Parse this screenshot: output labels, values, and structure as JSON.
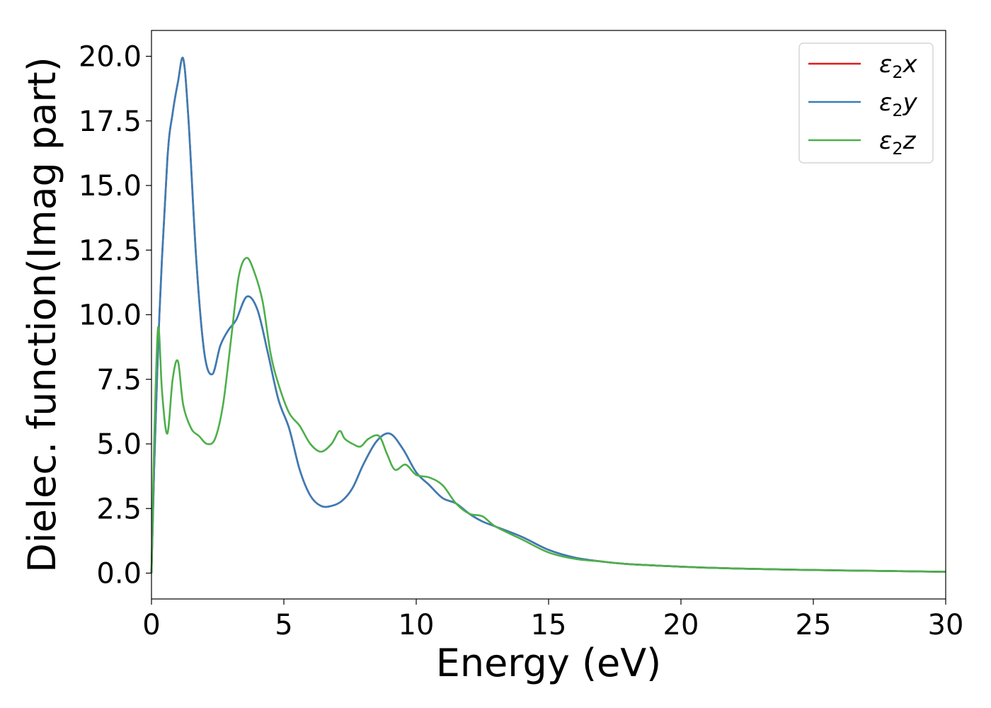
{
  "chart_data": {
    "type": "line",
    "title": "",
    "xlabel": "Energy (eV)",
    "ylabel": "Dielec. function(Imag part)",
    "xlim": [
      0,
      30
    ],
    "ylim": [
      -1,
      21
    ],
    "x_ticks": [
      "0",
      "5",
      "10",
      "15",
      "20",
      "25",
      "30"
    ],
    "y_ticks": [
      "0.0",
      "2.5",
      "5.0",
      "7.5",
      "10.0",
      "12.5",
      "15.0",
      "17.5",
      "20.0"
    ],
    "grid": false,
    "legend_position": "top-right",
    "legend": [
      {
        "sub": "2",
        "var": "x"
      },
      {
        "sub": "2",
        "var": "y"
      },
      {
        "sub": "2",
        "var": "z"
      }
    ],
    "series": [
      {
        "name": "ε2x",
        "color": "#e41a1c",
        "x": [
          0,
          0.1,
          0.3,
          0.6,
          0.8,
          1.0,
          1.2,
          1.4,
          1.7,
          2.0,
          2.3,
          2.6,
          2.9,
          3.2,
          3.6,
          4.0,
          4.4,
          4.8,
          5.2,
          5.6,
          6.0,
          6.4,
          6.8,
          7.2,
          7.6,
          8.0,
          8.5,
          9.0,
          9.5,
          10.0,
          10.5,
          11.0,
          11.5,
          12.0,
          12.5,
          13.0,
          14.0,
          15.0,
          16.0,
          17.0,
          18.0,
          20.0,
          22.0,
          25.0,
          28.0,
          30.0
        ],
        "y": [
          0,
          4.0,
          10.0,
          16.0,
          17.8,
          19.0,
          19.9,
          17.5,
          12.0,
          8.5,
          7.7,
          8.8,
          9.4,
          9.8,
          10.7,
          10.2,
          8.5,
          6.7,
          5.6,
          4.0,
          3.0,
          2.6,
          2.6,
          2.8,
          3.3,
          4.2,
          5.1,
          5.4,
          4.8,
          3.9,
          3.4,
          2.9,
          2.7,
          2.3,
          2.0,
          1.8,
          1.4,
          0.9,
          0.6,
          0.45,
          0.35,
          0.25,
          0.18,
          0.12,
          0.08,
          0.05
        ]
      },
      {
        "name": "ε2y",
        "color": "#377eb8",
        "x": [
          0,
          0.1,
          0.3,
          0.6,
          0.8,
          1.0,
          1.2,
          1.4,
          1.7,
          2.0,
          2.3,
          2.6,
          2.9,
          3.2,
          3.6,
          4.0,
          4.4,
          4.8,
          5.2,
          5.6,
          6.0,
          6.4,
          6.8,
          7.2,
          7.6,
          8.0,
          8.5,
          9.0,
          9.5,
          10.0,
          10.5,
          11.0,
          11.5,
          12.0,
          12.5,
          13.0,
          14.0,
          15.0,
          16.0,
          17.0,
          18.0,
          20.0,
          22.0,
          25.0,
          28.0,
          30.0
        ],
        "y": [
          0,
          4.0,
          10.0,
          16.0,
          17.8,
          19.0,
          19.9,
          17.5,
          12.0,
          8.5,
          7.7,
          8.8,
          9.4,
          9.8,
          10.7,
          10.2,
          8.5,
          6.7,
          5.6,
          4.0,
          3.0,
          2.6,
          2.6,
          2.8,
          3.3,
          4.2,
          5.1,
          5.4,
          4.8,
          3.9,
          3.4,
          2.9,
          2.7,
          2.3,
          2.0,
          1.8,
          1.4,
          0.9,
          0.6,
          0.45,
          0.35,
          0.25,
          0.18,
          0.12,
          0.08,
          0.05
        ]
      },
      {
        "name": "ε2z",
        "color": "#4daf4a",
        "x": [
          0,
          0.1,
          0.25,
          0.4,
          0.6,
          0.8,
          1.0,
          1.2,
          1.5,
          1.8,
          2.1,
          2.4,
          2.7,
          3.0,
          3.3,
          3.6,
          3.9,
          4.2,
          4.5,
          4.8,
          5.2,
          5.6,
          6.0,
          6.4,
          6.8,
          7.1,
          7.3,
          7.6,
          7.9,
          8.2,
          8.6,
          8.9,
          9.2,
          9.6,
          10.0,
          10.5,
          11.0,
          11.5,
          12.0,
          12.5,
          13.0,
          14.0,
          15.0,
          16.0,
          17.0,
          18.0,
          20.0,
          22.0,
          25.0,
          28.0,
          30.0
        ],
        "y": [
          0,
          5.0,
          9.5,
          7.0,
          5.4,
          7.5,
          8.2,
          6.5,
          5.6,
          5.3,
          5.0,
          5.2,
          6.5,
          9.0,
          11.5,
          12.2,
          11.6,
          10.5,
          8.5,
          7.3,
          6.2,
          5.7,
          5.0,
          4.7,
          5.0,
          5.5,
          5.2,
          5.0,
          4.9,
          5.2,
          5.3,
          4.6,
          4.0,
          4.2,
          3.8,
          3.7,
          3.4,
          2.7,
          2.3,
          2.2,
          1.8,
          1.3,
          0.8,
          0.55,
          0.45,
          0.35,
          0.25,
          0.18,
          0.12,
          0.08,
          0.05
        ]
      }
    ]
  }
}
